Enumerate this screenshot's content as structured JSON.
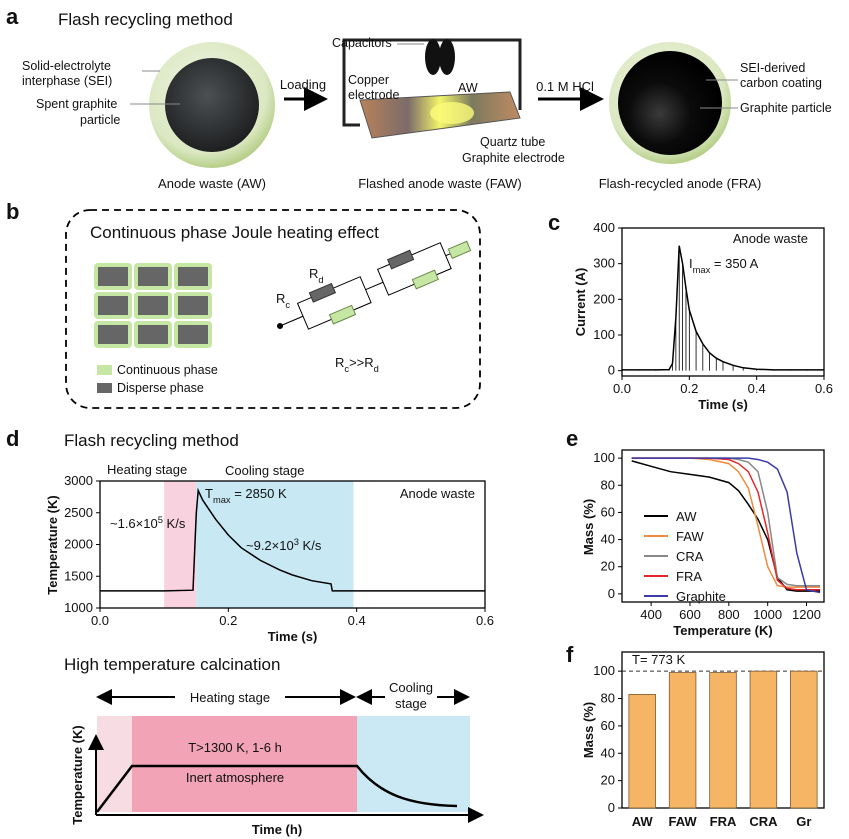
{
  "panel_a": {
    "letter": "a",
    "title": "Flash recycling method",
    "sei_label": [
      "Solid-electrolyte",
      "interphase (SEI)"
    ],
    "spent_label": [
      "Spent graphite",
      "particle"
    ],
    "loading": "Loading",
    "capacitors": "Capacitors",
    "copper": [
      "Copper",
      "electrode"
    ],
    "aw": "AW",
    "quartz": "Quartz tube",
    "graphite_electrode": "Graphite electrode",
    "acid": "0.1 M HCl",
    "coating": [
      "SEI-derived",
      "carbon coating"
    ],
    "graphite_particle": "Graphite particle",
    "captions": [
      "Anode waste (AW)",
      "Flashed anode waste (FAW)",
      "Flash-recycled anode (FRA)"
    ]
  },
  "panel_b": {
    "letter": "b",
    "title": "Continuous phase Joule heating effect",
    "legend": [
      "Continuous phase",
      "Disperse phase"
    ],
    "rc": [
      {
        "t": "R"
      },
      {
        "sub": "c"
      }
    ],
    "rd": [
      {
        "t": "R"
      },
      {
        "sub": "d"
      }
    ],
    "relation": [
      {
        "t": "R"
      },
      {
        "sub": "c"
      },
      {
        "t": ">>R"
      },
      {
        "sub": "d"
      }
    ]
  },
  "panel_d_calcination": {
    "title": "High temperature calcination",
    "heating": "Heating stage",
    "cooling": [
      "Cooling",
      "stage"
    ],
    "condition": "T>1300 K, 1-6 h",
    "atmosphere": "Inert atmosphere",
    "ylabel": "Temperature (K)",
    "xlabel": "Time (h)"
  },
  "chart_data": [
    {
      "type": "line",
      "panel_letter": "c",
      "xlabel": "Time (s)",
      "ylabel": "Current (A)",
      "color": "#000000",
      "drop_lines": true,
      "annotations": [
        [
          {
            "t": "Anode waste"
          }
        ],
        [
          {
            "t": "I"
          },
          {
            "sub": "max"
          },
          {
            "t": " = 350 A"
          }
        ]
      ],
      "x": [
        0,
        0.05,
        0.1,
        0.14,
        0.15,
        0.16,
        0.17,
        0.18,
        0.19,
        0.2,
        0.22,
        0.24,
        0.26,
        0.28,
        0.3,
        0.33,
        0.36,
        0.4,
        0.45,
        0.5,
        0.55,
        0.6
      ],
      "values": [
        2,
        2,
        2,
        3,
        20,
        150,
        350,
        300,
        230,
        170,
        110,
        75,
        50,
        35,
        25,
        15,
        8,
        4,
        2,
        2,
        2,
        2
      ],
      "xlim": [
        0,
        0.6
      ],
      "xticks": [
        {
          "value": 0,
          "label": "0.0"
        },
        0.2,
        0.4,
        0.6
      ],
      "ylim": [
        -15,
        400
      ],
      "yticks": [
        0,
        100,
        200,
        300,
        400
      ]
    },
    {
      "type": "line",
      "panel_letter": "d",
      "title": "Flash recycling method",
      "xlabel": "Time (s)",
      "ylabel": "Temperature (K)",
      "color": "#000000",
      "spans": [
        {
          "name": "Heating stage",
          "start": 0.1,
          "end": 0.15,
          "color": "#f8d3df"
        },
        {
          "name": "Cooling stage",
          "start": 0.15,
          "end": 0.395,
          "color": "#c8e9f4"
        }
      ],
      "annotations": [
        [
          {
            "t": "Anode waste"
          }
        ],
        [
          {
            "t": "T"
          },
          {
            "sub": "max"
          },
          {
            "t": " = 2850 K"
          }
        ],
        [
          {
            "t": "~1.6×10"
          },
          {
            "sup": "5"
          },
          {
            "t": " K/s"
          }
        ],
        [
          {
            "t": "~9.2×10"
          },
          {
            "sup": "3"
          },
          {
            "t": " K/s"
          }
        ]
      ],
      "x": [
        0,
        0.1,
        0.145,
        0.15,
        0.153,
        0.16,
        0.18,
        0.2,
        0.22,
        0.25,
        0.28,
        0.3,
        0.33,
        0.36,
        0.362,
        0.4,
        0.6
      ],
      "values": [
        1270,
        1270,
        1280,
        2500,
        2850,
        2700,
        2400,
        2150,
        1950,
        1750,
        1600,
        1520,
        1430,
        1380,
        1270,
        1270,
        1270
      ],
      "xlim": [
        0,
        0.6
      ],
      "xticks": [
        {
          "value": 0,
          "label": "0.0"
        },
        0.2,
        0.4,
        0.6
      ],
      "ylim": [
        1000,
        3000
      ],
      "yticks": [
        1000,
        1500,
        2000,
        2500,
        3000
      ]
    },
    {
      "type": "line",
      "panel_letter": "e",
      "xlabel": "Temperature (K)",
      "ylabel": "Mass  (%)",
      "legend": "center-left",
      "x": [
        300,
        400,
        500,
        600,
        700,
        800,
        850,
        900,
        950,
        1000,
        1050,
        1100,
        1150,
        1200,
        1270
      ],
      "series": [
        {
          "name": "AW",
          "color": "#000000",
          "values": [
            98,
            94,
            90,
            88,
            86,
            82,
            76,
            66,
            55,
            40,
            12,
            3,
            2,
            2,
            2
          ]
        },
        {
          "name": "FAW",
          "color": "#f08a3c",
          "values": [
            100,
            100,
            100,
            100,
            99,
            96,
            90,
            78,
            50,
            20,
            6,
            5,
            5,
            5,
            5
          ]
        },
        {
          "name": "CRA",
          "color": "#888888",
          "values": [
            100,
            100,
            100,
            100,
            100,
            100,
            99,
            97,
            90,
            60,
            12,
            7,
            6,
            6,
            6
          ]
        },
        {
          "name": "FRA",
          "color": "#e8262a",
          "values": [
            100,
            100,
            100,
            100,
            100,
            99,
            96,
            90,
            75,
            45,
            10,
            4,
            3,
            3,
            3
          ]
        },
        {
          "name": "Graphite",
          "color": "#3a3aa8",
          "values": [
            100,
            100,
            100,
            100,
            100,
            100,
            100,
            100,
            99,
            97,
            92,
            75,
            30,
            3,
            1
          ]
        }
      ],
      "xlim": [
        250,
        1290
      ],
      "xticks": [
        400,
        600,
        800,
        1000,
        1200
      ],
      "ylim": [
        -6,
        106
      ],
      "yticks": [
        0,
        20,
        40,
        60,
        80,
        100
      ]
    },
    {
      "type": "bar",
      "panel_letter": "f",
      "ylabel": "Mass  (%)",
      "color": "#f6b565",
      "reference_line": 100,
      "annotations": [
        [
          {
            "t": "T= 773 K"
          }
        ]
      ],
      "categories": [
        "AW",
        "FAW",
        "FRA",
        "CRA",
        "Gr"
      ],
      "values": [
        83,
        99,
        99,
        100,
        100
      ],
      "ylim": [
        0,
        114
      ],
      "yticks": [
        0,
        20,
        40,
        60,
        80,
        100
      ]
    }
  ]
}
